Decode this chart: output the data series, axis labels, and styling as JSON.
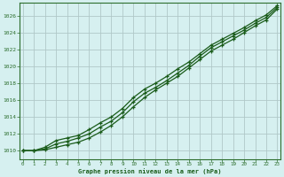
{
  "title": "Graphe pression niveau de la mer (hPa)",
  "background_color": "#d6f0f0",
  "grid_color": "#b0c8c8",
  "line_color": "#1a5c1a",
  "border_color": "#2d6e2d",
  "x_ticks": [
    0,
    1,
    2,
    3,
    4,
    5,
    6,
    7,
    8,
    9,
    10,
    11,
    12,
    13,
    14,
    15,
    16,
    17,
    18,
    19,
    20,
    21,
    22,
    23
  ],
  "y_ticks": [
    1010,
    1012,
    1014,
    1016,
    1018,
    1020,
    1022,
    1024,
    1026
  ],
  "ylim": [
    1009.0,
    1027.5
  ],
  "xlim": [
    -0.3,
    23.3
  ],
  "line1": [
    1010.0,
    1010.0,
    1010.1,
    1010.4,
    1010.7,
    1011.0,
    1011.5,
    1012.2,
    1013.0,
    1014.0,
    1015.2,
    1016.3,
    1017.2,
    1018.0,
    1018.8,
    1019.8,
    1020.8,
    1021.8,
    1022.5,
    1023.2,
    1024.0,
    1024.8,
    1025.5,
    1026.8
  ],
  "line2": [
    1010.0,
    1010.0,
    1010.2,
    1010.8,
    1011.1,
    1011.5,
    1012.0,
    1012.8,
    1013.5,
    1014.5,
    1015.8,
    1016.8,
    1017.5,
    1018.3,
    1019.2,
    1020.1,
    1021.2,
    1022.2,
    1022.9,
    1023.6,
    1024.3,
    1025.1,
    1025.8,
    1027.0
  ],
  "line3": [
    1010.0,
    1010.0,
    1010.4,
    1011.2,
    1011.5,
    1011.8,
    1012.5,
    1013.3,
    1014.0,
    1015.0,
    1016.3,
    1017.3,
    1018.0,
    1018.8,
    1019.7,
    1020.5,
    1021.5,
    1022.5,
    1023.2,
    1023.9,
    1024.6,
    1025.4,
    1026.1,
    1027.2
  ]
}
